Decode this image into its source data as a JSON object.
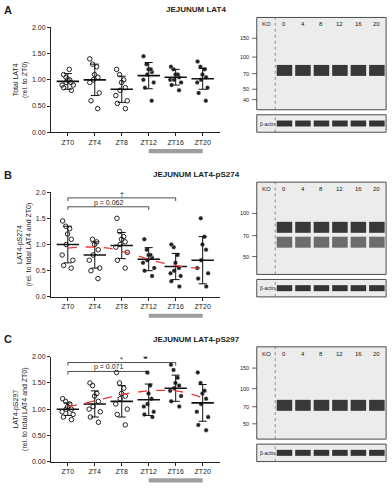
{
  "chart_data": [
    {
      "type": "scatter",
      "panel": "A",
      "title": "JEJUNUM LAT4",
      "ylabel": "Total LAT4 (rel. to ZT0)",
      "xlim": [
        -2.5,
        22.5
      ],
      "xticks": [
        {
          "value": 0,
          "label": "ZT0"
        },
        {
          "value": 4,
          "label": "ZT4"
        },
        {
          "value": 8,
          "label": "ZT8"
        },
        {
          "value": 12,
          "label": "ZT12"
        },
        {
          "value": 16,
          "label": "ZT16"
        },
        {
          "value": 20,
          "label": "ZT20"
        }
      ],
      "ylim": [
        0,
        2
      ],
      "yticks": [
        {
          "value": 0,
          "label": "0.00"
        },
        {
          "value": 0.5,
          "label": "0.50"
        },
        {
          "value": 1,
          "label": "1.00"
        },
        {
          "value": 1.5,
          "label": "1.50"
        },
        {
          "value": 2,
          "label": "2.00"
        }
      ],
      "dark_phase": [
        12,
        20
      ],
      "series": [
        {
          "x": 0,
          "values": [
            0.8,
            0.85,
            0.9,
            0.95,
            0.95,
            1.0,
            1.0,
            1.05,
            1.1,
            1.2,
            0.9
          ],
          "mean": 0.97,
          "sd": 0.15,
          "marker": "open"
        },
        {
          "x": 4,
          "values": [
            0.45,
            0.6,
            0.75,
            0.95,
            1.05,
            1.1,
            1.25,
            1.3,
            1.4,
            1.0
          ],
          "mean": 1.0,
          "sd": 0.3,
          "marker": "open"
        },
        {
          "x": 8,
          "values": [
            0.45,
            0.55,
            0.6,
            0.7,
            0.8,
            0.85,
            0.95,
            1.0,
            1.1,
            1.2
          ],
          "mean": 0.82,
          "sd": 0.25,
          "marker": "open"
        },
        {
          "x": 12,
          "values": [
            0.6,
            0.85,
            0.95,
            1.0,
            1.1,
            1.15,
            1.2,
            1.3,
            1.45,
            1.2
          ],
          "mean": 1.08,
          "sd": 0.25,
          "marker": "filled"
        },
        {
          "x": 16,
          "values": [
            0.8,
            0.9,
            0.95,
            1.0,
            1.05,
            1.1,
            1.1,
            1.2,
            1.25,
            1.0
          ],
          "mean": 1.05,
          "sd": 0.15,
          "marker": "filled"
        },
        {
          "x": 20,
          "values": [
            0.6,
            0.75,
            0.85,
            0.95,
            1.0,
            1.05,
            1.1,
            1.2,
            1.25,
            1.35
          ],
          "mean": 1.02,
          "sd": 0.2,
          "marker": "filled"
        }
      ],
      "comparisons": [],
      "blot": {
        "lanes": [
          "KO",
          "0",
          "4",
          "8",
          "12",
          "16",
          "20"
        ],
        "mw_kda": [
          150,
          100,
          70,
          50,
          40
        ],
        "mw_range": [
          170,
          35
        ],
        "bands_kda": [
          75
        ],
        "loading_control": "β-actin"
      }
    },
    {
      "type": "scatter",
      "panel": "B",
      "title": "JEJUNUM LAT4-pS274",
      "ylabel": "LAT4-pS274 (rel. to total LAT4 and ZT0)",
      "xlim": [
        -2.5,
        22.5
      ],
      "xticks": [
        {
          "value": 0,
          "label": "ZT0"
        },
        {
          "value": 4,
          "label": "ZT4"
        },
        {
          "value": 8,
          "label": "ZT8"
        },
        {
          "value": 12,
          "label": "ZT12"
        },
        {
          "value": 16,
          "label": "ZT16"
        },
        {
          "value": 20,
          "label": "ZT20"
        }
      ],
      "ylim": [
        0,
        2
      ],
      "yticks": [
        {
          "value": 0,
          "label": "0.0"
        },
        {
          "value": 0.5,
          "label": "0.5"
        },
        {
          "value": 1,
          "label": "1.0"
        },
        {
          "value": 1.5,
          "label": "1.5"
        },
        {
          "value": 2,
          "label": "2.0"
        }
      ],
      "dark_phase": [
        12,
        20
      ],
      "series": [
        {
          "x": 0,
          "values": [
            0.55,
            0.6,
            0.7,
            0.8,
            1.0,
            1.1,
            1.2,
            1.35,
            1.45,
            1.3
          ],
          "mean": 1.0,
          "sd": 0.35,
          "marker": "open"
        },
        {
          "x": 4,
          "values": [
            0.35,
            0.5,
            0.55,
            0.7,
            0.8,
            0.9,
            1.0,
            1.05,
            1.1
          ],
          "mean": 0.8,
          "sd": 0.25,
          "marker": "open"
        },
        {
          "x": 8,
          "values": [
            0.55,
            0.7,
            0.85,
            0.95,
            1.0,
            1.05,
            1.15,
            1.25,
            1.5,
            1.1
          ],
          "mean": 0.98,
          "sd": 0.25,
          "marker": "open"
        },
        {
          "x": 12,
          "values": [
            0.4,
            0.5,
            0.55,
            0.65,
            0.7,
            0.75,
            0.8,
            0.9,
            1.1,
            0.8
          ],
          "mean": 0.72,
          "sd": 0.22,
          "marker": "filled"
        },
        {
          "x": 16,
          "values": [
            0.2,
            0.3,
            0.4,
            0.45,
            0.5,
            0.55,
            0.65,
            0.8,
            0.95,
            1.0
          ],
          "mean": 0.58,
          "sd": 0.25,
          "marker": "filled"
        },
        {
          "x": 20,
          "values": [
            0.2,
            0.35,
            0.45,
            0.55,
            0.7,
            0.9,
            1.0,
            1.15,
            1.5
          ],
          "mean": 0.7,
          "sd": 0.45,
          "marker": "filled"
        }
      ],
      "fit": {
        "x": [
          0,
          2,
          4,
          6,
          8,
          10,
          12,
          14,
          16,
          18,
          20
        ],
        "values": [
          0.93,
          0.95,
          0.95,
          0.93,
          0.87,
          0.8,
          0.72,
          0.65,
          0.6,
          0.56,
          0.55
        ],
        "color": "#e53935",
        "line_style": "dash"
      },
      "comparisons": [
        {
          "from": 0,
          "to": 12,
          "label": "p = 0.062"
        },
        {
          "from": 0,
          "to": 16,
          "label": "†"
        }
      ],
      "blot": {
        "lanes": [
          "KO",
          "0",
          "4",
          "8",
          "12",
          "16",
          "20"
        ],
        "mw_kda": [
          100,
          70,
          50
        ],
        "mw_range": [
          130,
          40
        ],
        "bands_kda": [
          80,
          63
        ],
        "loading_control": "β-actin"
      }
    },
    {
      "type": "scatter",
      "panel": "C",
      "title": "JEJUNUM LAT4-pS297",
      "ylabel": "LAT4-pS297 (rel. to total LAT4 and ZT0)",
      "xlim": [
        -2.5,
        22.5
      ],
      "xticks": [
        {
          "value": 0,
          "label": "ZT0"
        },
        {
          "value": 4,
          "label": "ZT4"
        },
        {
          "value": 8,
          "label": "ZT8"
        },
        {
          "value": 12,
          "label": "ZT12"
        },
        {
          "value": 16,
          "label": "ZT16"
        },
        {
          "value": 20,
          "label": "ZT20"
        }
      ],
      "ylim": [
        0,
        2
      ],
      "yticks": [
        {
          "value": 0,
          "label": "0.00"
        },
        {
          "value": 0.5,
          "label": "0.50"
        },
        {
          "value": 1,
          "label": "1.00"
        },
        {
          "value": 1.5,
          "label": "1.50"
        },
        {
          "value": 2,
          "label": "2.00"
        }
      ],
      "dark_phase": [
        12,
        20
      ],
      "series": [
        {
          "x": 0,
          "values": [
            0.8,
            0.85,
            0.9,
            0.95,
            1.0,
            1.0,
            1.05,
            1.1,
            1.15,
            1.2
          ],
          "mean": 1.0,
          "sd": 0.12,
          "marker": "open"
        },
        {
          "x": 4,
          "values": [
            0.75,
            0.85,
            0.95,
            1.0,
            1.05,
            1.15,
            1.25,
            1.3,
            1.45,
            1.5
          ],
          "mean": 1.1,
          "sd": 0.25,
          "marker": "open"
        },
        {
          "x": 8,
          "values": [
            0.7,
            0.9,
            1.0,
            1.1,
            1.2,
            1.3,
            1.4,
            1.5,
            1.7,
            1.25
          ],
          "mean": 1.15,
          "sd": 0.3,
          "marker": "open"
        },
        {
          "x": 12,
          "values": [
            0.85,
            0.9,
            0.95,
            1.05,
            1.1,
            1.2,
            1.3,
            1.45,
            1.7,
            2.0
          ],
          "mean": 1.18,
          "sd": 0.3,
          "marker": "filled"
        },
        {
          "x": 16,
          "values": [
            1.05,
            1.15,
            1.25,
            1.35,
            1.4,
            1.45,
            1.5,
            1.6,
            1.75,
            1.85
          ],
          "mean": 1.4,
          "sd": 0.25,
          "marker": "filled"
        },
        {
          "x": 20,
          "values": [
            0.6,
            0.7,
            0.85,
            0.95,
            1.1,
            1.2,
            1.3,
            1.5,
            1.7,
            1.35
          ],
          "mean": 1.12,
          "sd": 0.35,
          "marker": "filled"
        }
      ],
      "fit": {
        "x": [
          0,
          2,
          4,
          6,
          8,
          10,
          12,
          14,
          16,
          18,
          20
        ],
        "values": [
          1.05,
          1.1,
          1.16,
          1.22,
          1.28,
          1.32,
          1.35,
          1.36,
          1.35,
          1.3,
          1.22
        ],
        "color": "#e53935",
        "line_style": "dash"
      },
      "comparisons": [
        {
          "from": 0,
          "to": 12,
          "label": "p = 0.071"
        },
        {
          "from": 0,
          "to": 16,
          "label": "*"
        }
      ],
      "blot": {
        "lanes": [
          "KO",
          "0",
          "4",
          "8",
          "12",
          "16",
          "20"
        ],
        "mw_kda": [
          150,
          100,
          70,
          50
        ],
        "mw_range": [
          170,
          40
        ],
        "bands_kda": [
          72
        ],
        "loading_control": "β-actin"
      }
    }
  ]
}
